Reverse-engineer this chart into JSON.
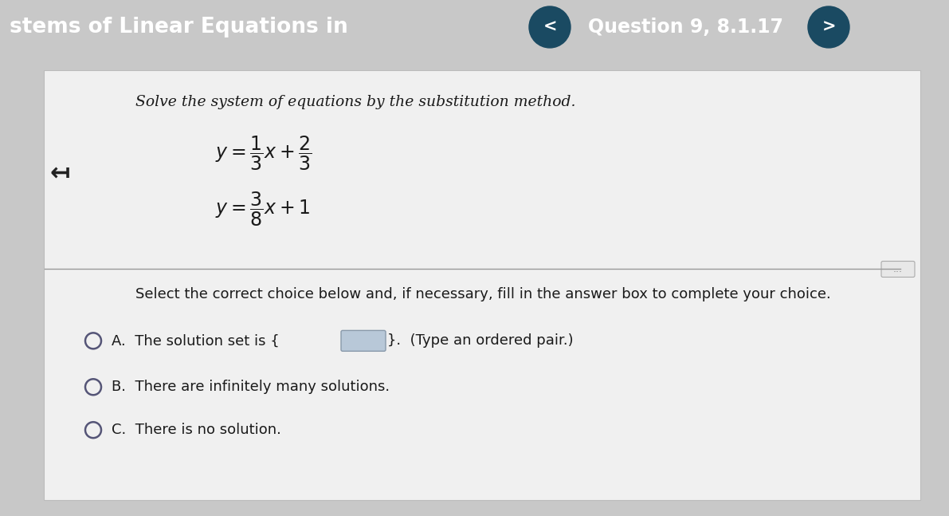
{
  "header_bg": "#2a6d8a",
  "header_text_left": "stems of Linear Equations in",
  "header_text_right": "Question 9, 8.1.17",
  "header_text_color": "#ffffff",
  "body_bg": "#c8c8c8",
  "white_panel_bg": "#f0f0f0",
  "body_text_color": "#1a1a1a",
  "instruction": "Solve the system of equations by the substitution method.",
  "select_text": "Select the correct choice below and, if necessary, fill in the answer box to complete your choice.",
  "choice_b": "B.  There are infinitely many solutions.",
  "choice_c": "C.  There is no solution.",
  "nav_btn_color": "#1a4a62",
  "separator_color": "#999999",
  "radio_color": "#555577",
  "answer_box_color": "#b8c8d8",
  "dots_color": "#888888"
}
